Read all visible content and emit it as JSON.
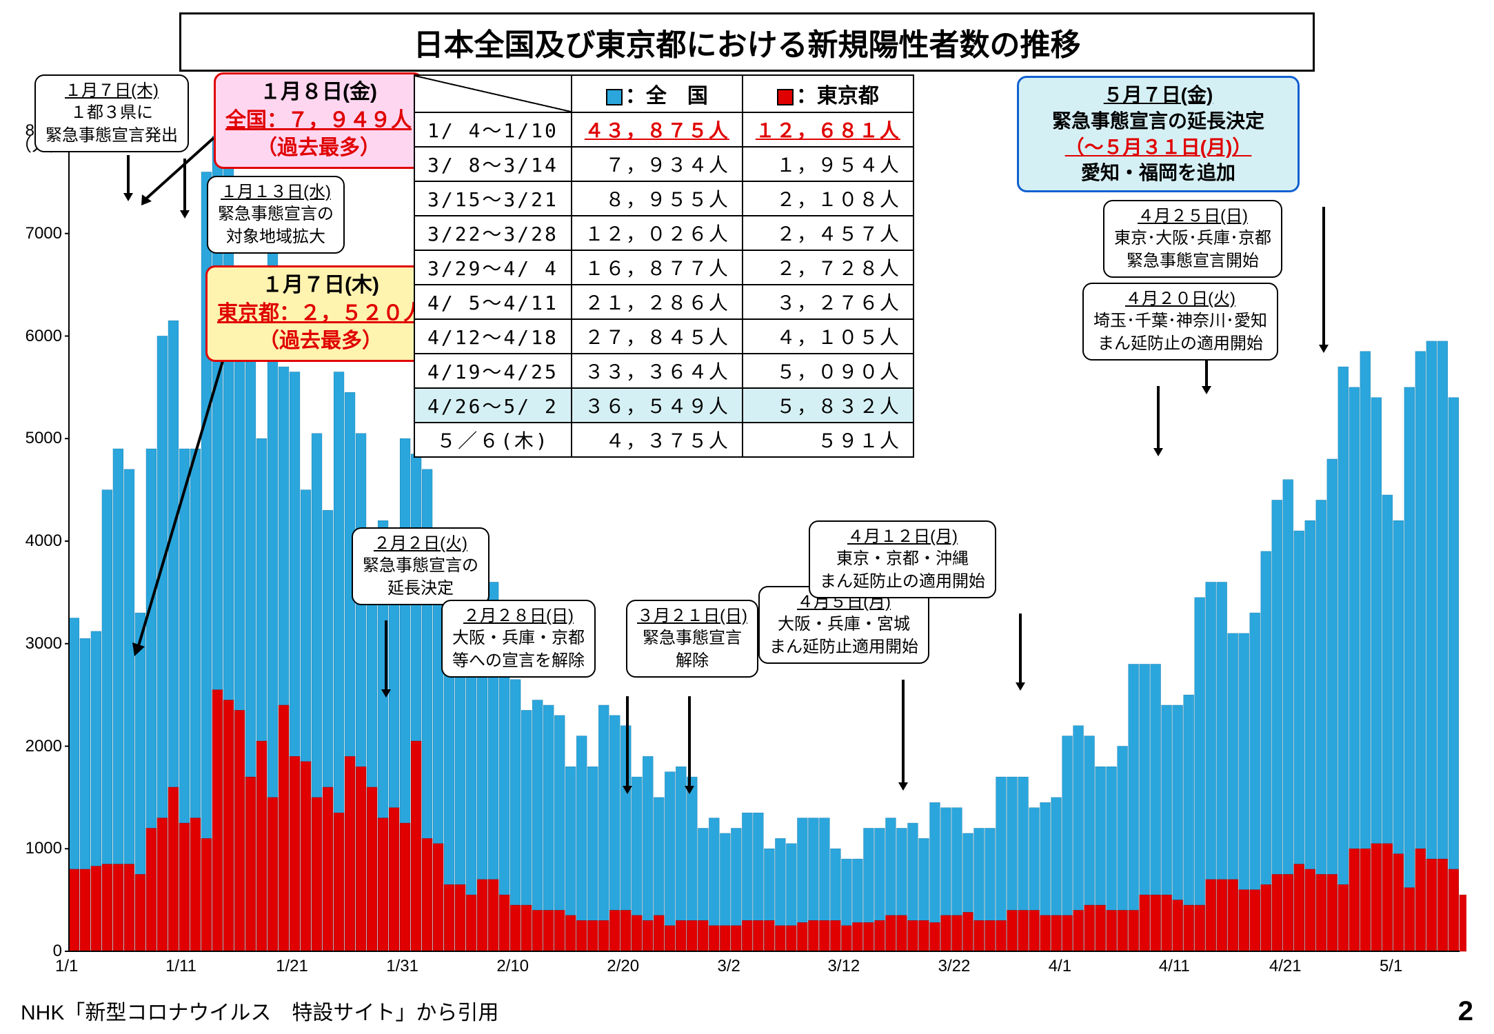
{
  "title": "日本全国及び東京都における新規陽性者数の推移",
  "y_axis_label": "（人）",
  "source": "NHK「新型コロナウイルス　特設サイト」から引用",
  "page_number": "2",
  "colors": {
    "national": "#2aa6dd",
    "tokyo": "#e00000",
    "national_border": "#1a80b0",
    "tokyo_border": "#a00000",
    "bg": "#ffffff",
    "axis": "#000000"
  },
  "legend": {
    "national": "：全　国",
    "tokyo": "：東京都"
  },
  "table": {
    "rows": [
      {
        "date": "1/ 4～1/10",
        "national": "４３，８７５人",
        "tokyo": "１２，６８１人",
        "highlight_red": true
      },
      {
        "date": "3/ 8～3/14",
        "national": "７，９３４人",
        "tokyo": "１，９５４人"
      },
      {
        "date": "3/15～3/21",
        "national": "８，９５５人",
        "tokyo": "２，１０８人"
      },
      {
        "date": "3/22～3/28",
        "national": "１２，０２６人",
        "tokyo": "２，４５７人"
      },
      {
        "date": "3/29～4/ 4",
        "national": "１６，８７７人",
        "tokyo": "２，７２８人"
      },
      {
        "date": "4/ 5～4/11",
        "national": "２１，２８６人",
        "tokyo": "３，２７６人"
      },
      {
        "date": "4/12～4/18",
        "national": "２７，８４５人",
        "tokyo": "４，１０５人"
      },
      {
        "date": "4/19～4/25",
        "national": "３３，３６４人",
        "tokyo": "５，０９０人"
      },
      {
        "date": "4/26～5/ 2",
        "national": "３６，５４９人",
        "tokyo": "５，８３２人",
        "highlight_row": true
      },
      {
        "date": " ５／６(木)",
        "national": "４，３７５人",
        "tokyo": "５９１人"
      }
    ]
  },
  "callouts": {
    "c1": {
      "date": "１月７日(木)",
      "body": "１都３県に\n緊急事態宣言発出"
    },
    "c2": {
      "date": "１月８日(金)",
      "body": "全国：７，９４９人\n（過去最多）"
    },
    "c3": {
      "date": "１月１３日(水)",
      "body": "緊急事態宣言の\n対象地域拡大"
    },
    "c4": {
      "date": "１月７日(木)",
      "body": "東京都：２，５２０人\n（過去最多）"
    },
    "c5": {
      "date": "２月２日(火)",
      "body": "緊急事態宣言の\n延長決定"
    },
    "c6": {
      "date": "２月２８日(日)",
      "body": "大阪・兵庫・京都\n等への宣言を解除"
    },
    "c7": {
      "date": "３月２１日(日)",
      "body": "緊急事態宣言\n解除"
    },
    "c8": {
      "date": "４月５日(月)",
      "body": "大阪・兵庫・宮城\nまん延防止適用開始"
    },
    "c9": {
      "date": "４月１２日(月)",
      "body": "東京・京都・沖縄\nまん延防止の適用開始"
    },
    "c10": {
      "date": "４月２０日(火)",
      "body": "埼玉･千葉･神奈川･愛知\nまん延防止の適用開始"
    },
    "c11": {
      "date": "４月２５日(日)",
      "body": "東京･大阪･兵庫･京都\n緊急事態宣言開始"
    },
    "c12": {
      "date": "５月７日(金)",
      "line2": "緊急事態宣言の延長決定",
      "line3": "（～５月３１日(月)）",
      "line4": "愛知・福岡を追加"
    }
  },
  "chart": {
    "type": "bar",
    "y_max": 8000,
    "y_min": 0,
    "y_tick_step": 1000,
    "x_labels": [
      "1/1",
      "1/11",
      "1/21",
      "1/31",
      "2/10",
      "2/20",
      "3/2",
      "3/12",
      "3/22",
      "4/1",
      "4/11",
      "4/21",
      "5/1"
    ],
    "national": [
      3250,
      3050,
      3120,
      4500,
      4900,
      4700,
      3300,
      4900,
      6000,
      6150,
      4900,
      4900,
      7600,
      7950,
      7800,
      5750,
      6400,
      5000,
      7200,
      5700,
      5650,
      4500,
      5050,
      4300,
      5650,
      5450,
      5050,
      4000,
      4200,
      3850,
      5000,
      4850,
      4700,
      3600,
      4050,
      3450,
      3950,
      3850,
      3600,
      2800,
      2650,
      2350,
      2450,
      2400,
      2300,
      1800,
      2100,
      1800,
      2400,
      2300,
      2200,
      1700,
      1900,
      1500,
      1750,
      1800,
      1700,
      1200,
      1300,
      1150,
      1200,
      1350,
      1350,
      1000,
      1100,
      1050,
      1300,
      1300,
      1300,
      1000,
      900,
      900,
      1200,
      1200,
      1300,
      1200,
      1250,
      1100,
      1450,
      1400,
      1400,
      1150,
      1200,
      1200,
      1700,
      1700,
      1700,
      1400,
      1450,
      1500,
      2100,
      2200,
      2100,
      1800,
      1800,
      2000,
      2800,
      2800,
      2800,
      2400,
      2400,
      2500,
      3450,
      3600,
      3600,
      3100,
      3100,
      3300,
      3900,
      4400,
      4600,
      4100,
      4200,
      4400,
      4800,
      5700,
      5500,
      5850,
      5400,
      4450,
      4200,
      5500,
      5850,
      5950,
      5950,
      5400
    ],
    "tokyo": [
      800,
      800,
      830,
      850,
      850,
      850,
      750,
      1200,
      1300,
      1600,
      1250,
      1300,
      1100,
      2550,
      2450,
      2350,
      1700,
      2050,
      1500,
      2400,
      1900,
      1850,
      1500,
      1600,
      1350,
      1900,
      1800,
      1600,
      1300,
      1400,
      1250,
      2050,
      1100,
      1050,
      650,
      650,
      550,
      700,
      700,
      550,
      450,
      450,
      400,
      400,
      400,
      350,
      300,
      300,
      300,
      400,
      400,
      350,
      300,
      350,
      250,
      300,
      300,
      300,
      250,
      250,
      250,
      300,
      300,
      300,
      250,
      250,
      280,
      300,
      300,
      300,
      250,
      280,
      280,
      300,
      350,
      350,
      300,
      300,
      280,
      350,
      350,
      380,
      300,
      300,
      300,
      400,
      400,
      400,
      350,
      350,
      350,
      400,
      450,
      450,
      400,
      400,
      400,
      550,
      550,
      550,
      500,
      450,
      450,
      700,
      700,
      700,
      600,
      600,
      650,
      750,
      750,
      850,
      800,
      750,
      750,
      650,
      1000,
      1000,
      1050,
      1050,
      950,
      620,
      1000,
      900,
      900,
      800,
      550
    ]
  }
}
